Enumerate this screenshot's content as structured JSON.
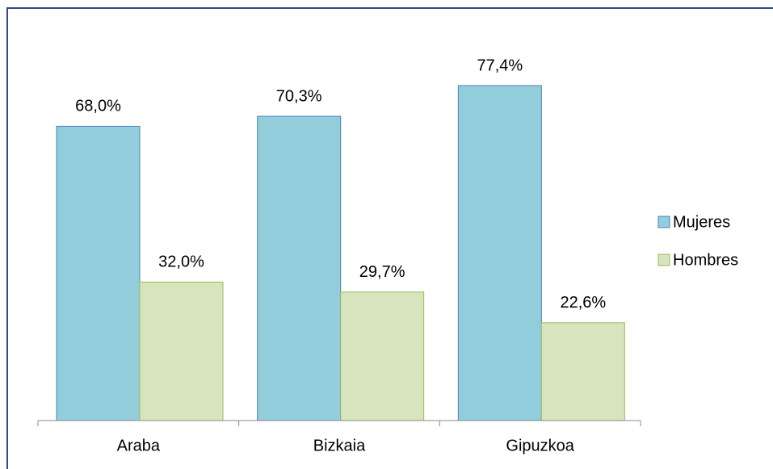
{
  "chart_data": {
    "type": "bar",
    "categories": [
      "Araba",
      "Bizkaia",
      "Gipuzkoa"
    ],
    "series": [
      {
        "name": "Mujeres",
        "color": "#92cddc",
        "values": [
          68.0,
          70.3,
          77.4
        ],
        "value_labels": [
          "68,0%",
          "70,3%",
          "77,4%"
        ]
      },
      {
        "name": "Hombres",
        "color": "#d7e4bd",
        "values": [
          32.0,
          29.7,
          22.6
        ],
        "value_labels": [
          "32,0%",
          "29,7%",
          "22,6%"
        ]
      }
    ],
    "legend": "right"
  }
}
